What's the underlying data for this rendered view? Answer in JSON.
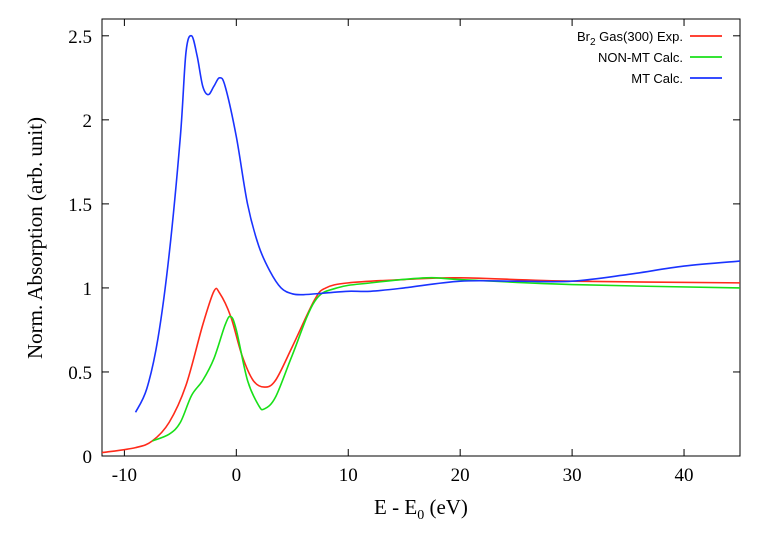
{
  "chart_data": {
    "type": "line",
    "title": "",
    "xlabel": "E - E0 (eV)",
    "xlabel_main": "E - E",
    "xlabel_sub": "0",
    "xlabel_unit": " (eV)",
    "ylabel": "Norm. Absorption (arb. unit)",
    "xlim": [
      -12,
      45
    ],
    "ylim": [
      0,
      2.6
    ],
    "xticks": [
      -10,
      0,
      10,
      20,
      30,
      40
    ],
    "xtick_labels": [
      "-10",
      "0",
      "10",
      "20",
      "30",
      "40"
    ],
    "yticks": [
      0,
      0.5,
      1,
      1.5,
      2,
      2.5
    ],
    "ytick_labels": [
      "0",
      "0.5",
      "1",
      "1.5",
      "2",
      "2.5"
    ],
    "grid": false,
    "legend_position": "top-right",
    "series": [
      {
        "name": "Br2 Gas(300) Exp.",
        "legend_main": "Br",
        "legend_sub": "2",
        "legend_rest": " Gas(300) Exp.",
        "color": "#ff2a1a",
        "x": [
          -12,
          -9,
          -7.5,
          -6,
          -4.5,
          -3,
          -2,
          -1.5,
          -0.5,
          0.5,
          1.5,
          2.5,
          3.5,
          5,
          7,
          8,
          10,
          15,
          20,
          30,
          45
        ],
        "y": [
          0.02,
          0.05,
          0.09,
          0.2,
          0.42,
          0.78,
          0.98,
          0.97,
          0.83,
          0.6,
          0.45,
          0.41,
          0.45,
          0.65,
          0.93,
          1.0,
          1.03,
          1.05,
          1.06,
          1.04,
          1.03
        ]
      },
      {
        "name": "NON-MT Calc.",
        "color": "#18e018",
        "x": [
          -7.5,
          -6,
          -5,
          -4,
          -3,
          -2,
          -1,
          -0.5,
          0,
          1,
          2,
          2.5,
          3.5,
          5,
          7,
          9,
          12,
          17,
          20,
          30,
          45
        ],
        "y": [
          0.09,
          0.13,
          0.2,
          0.36,
          0.45,
          0.58,
          0.78,
          0.83,
          0.75,
          0.45,
          0.3,
          0.28,
          0.35,
          0.6,
          0.92,
          1.0,
          1.03,
          1.06,
          1.05,
          1.02,
          1.0
        ]
      },
      {
        "name": "MT Calc.",
        "color": "#1a33ff",
        "x": [
          -9,
          -8,
          -7,
          -6,
          -5,
          -4.5,
          -4,
          -3.5,
          -3,
          -2.5,
          -2,
          -1.5,
          -1,
          0,
          1,
          2,
          3,
          4,
          5,
          6,
          8,
          10,
          12,
          15,
          20,
          25,
          30,
          35,
          40,
          45
        ],
        "y": [
          0.26,
          0.4,
          0.7,
          1.2,
          1.9,
          2.4,
          2.5,
          2.38,
          2.2,
          2.15,
          2.2,
          2.25,
          2.2,
          1.9,
          1.5,
          1.25,
          1.1,
          1.0,
          0.965,
          0.96,
          0.97,
          0.98,
          0.98,
          1.0,
          1.04,
          1.04,
          1.04,
          1.08,
          1.13,
          1.16
        ]
      }
    ]
  }
}
